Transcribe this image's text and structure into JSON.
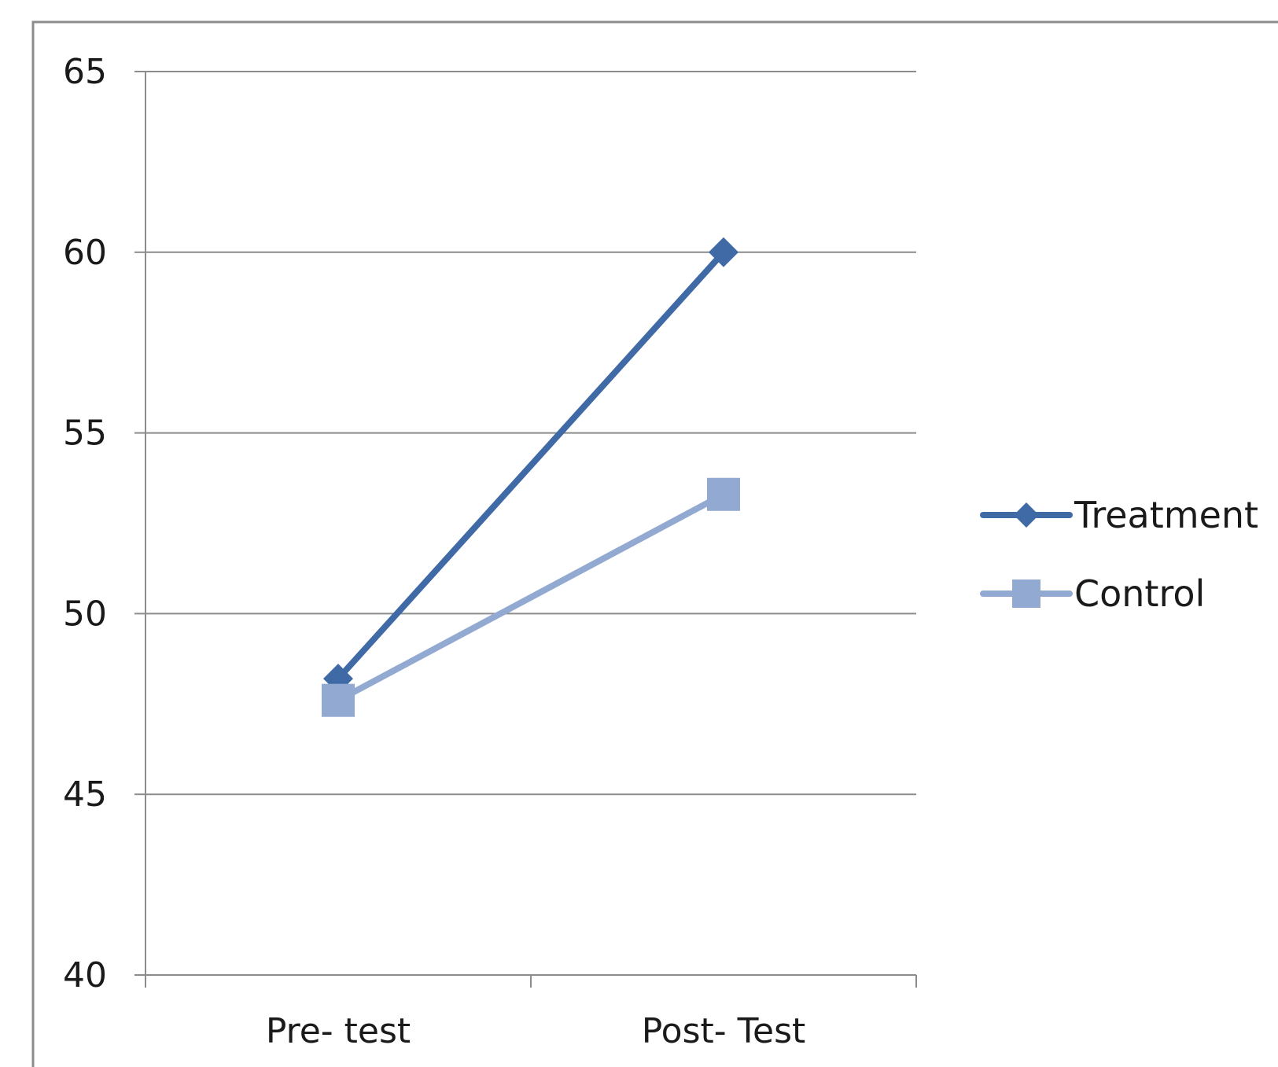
{
  "chart_data": {
    "type": "line",
    "categories": [
      "Pre- test",
      "Post- Test"
    ],
    "series": [
      {
        "name": "Treatment",
        "values": [
          48.2,
          60.0
        ],
        "color": "#3f6aa6",
        "marker": "diamond"
      },
      {
        "name": "Control",
        "values": [
          47.6,
          53.3
        ],
        "color": "#92a9d1",
        "marker": "square"
      }
    ],
    "ylim": [
      40,
      65
    ],
    "yticks": [
      40,
      45,
      50,
      55,
      60,
      65
    ],
    "grid": true,
    "legend": "right",
    "title": "",
    "xlabel": "",
    "ylabel": ""
  }
}
